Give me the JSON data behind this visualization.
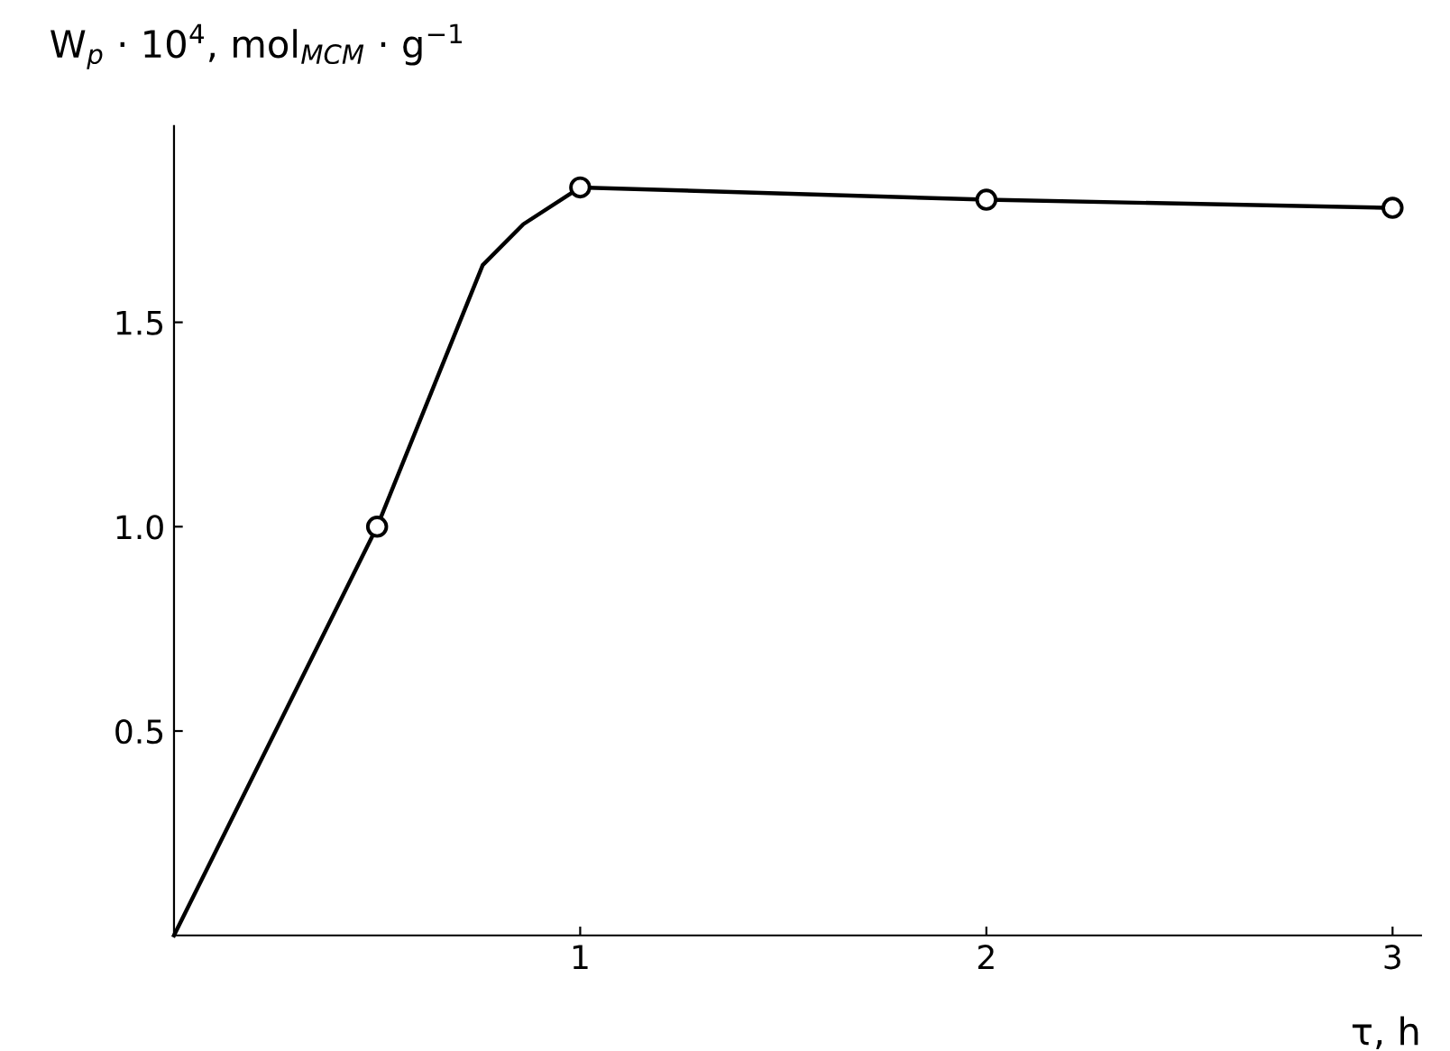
{
  "chart_data": {
    "type": "line",
    "xlabel": "τ, h",
    "ylabel": "W$_{p}$ · 10$^{4}$, mol$_{MCM}$ · g$^{−1}$",
    "series": [
      {
        "color": "#000000",
        "marker": "none",
        "x": [
          0,
          0.5,
          0.76,
          0.86,
          1,
          2,
          3
        ],
        "values": [
          0,
          1.0,
          1.64,
          1.74,
          1.83,
          1.8,
          1.78
        ]
      },
      {
        "type": "scatter",
        "color": "#000000",
        "marker": "circle",
        "x": [
          0.5,
          1,
          2,
          3
        ],
        "values": [
          1.0,
          1.83,
          1.8,
          1.78
        ]
      }
    ],
    "xlim": [
      0,
      3.07
    ],
    "ylim": [
      0,
      1.98
    ],
    "xticks": [
      1,
      2,
      3
    ],
    "yticks": [
      0.5,
      {
        "value": 1,
        "label": "1.0"
      },
      1.5
    ],
    "grid": false
  }
}
